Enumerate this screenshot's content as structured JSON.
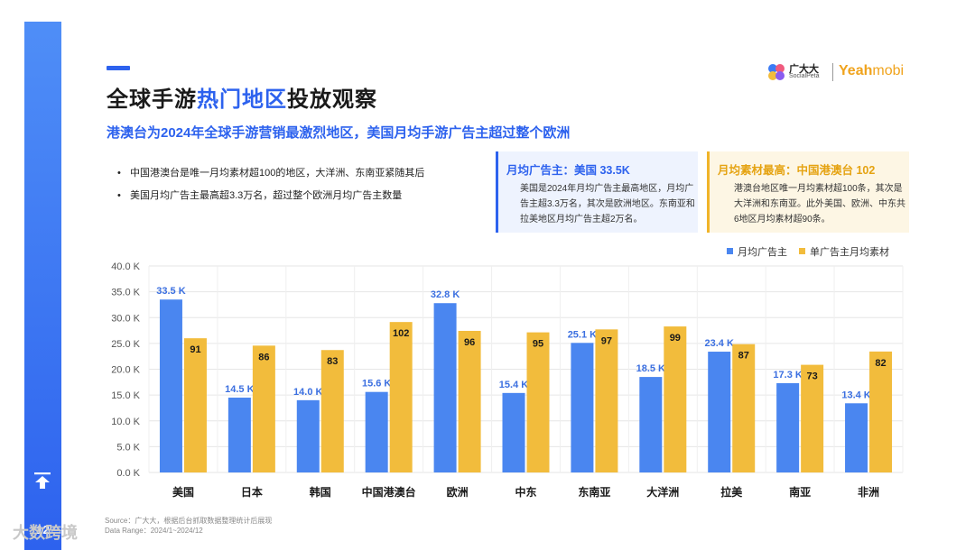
{
  "page": {
    "number": "12"
  },
  "header": {
    "title_prefix": "全球手游",
    "title_highlight": "热门地区",
    "title_suffix": "投放观察",
    "subtitle": "港澳台为2024年全球手游营销最激烈地区，美国月均手游广告主超过整个欧洲"
  },
  "logo": {
    "cn": "广大大",
    "en": "SocialPeta",
    "brand_a": "Yeah",
    "brand_b": "mobi"
  },
  "bullets": [
    "中国港澳台是唯一月均素材超100的地区，大洋洲、东南亚紧随其后",
    "美国月均广告主最高超3.3万名，超过整个欧洲月均广告主数量"
  ],
  "cards": [
    {
      "title": "月均广告主：美国 33.5K",
      "body": "美国是2024年月均广告主最高地区，月均广告主超3.3万名，其次是欧洲地区。东南亚和拉美地区月均广告主超2万名。"
    },
    {
      "title": "月均素材最高：中国港澳台 102",
      "body": "港澳台地区唯一月均素材超100条，其次是大洋洲和东南亚。此外美国、欧洲、中东共6地区月均素材超90条。"
    }
  ],
  "source": {
    "line1": "Source：广大大，根据后台抓取数据整理统计后展现",
    "line2": "Data Range：2024/1~2024/12"
  },
  "watermark": "大数跨境",
  "colors": {
    "blue": "#4a86f0",
    "yellow": "#f2bc3c",
    "accent": "#2d62ee"
  },
  "chart_data": {
    "type": "bar",
    "categories": [
      "美国",
      "日本",
      "韩国",
      "中国港澳台",
      "欧洲",
      "中东",
      "东南亚",
      "大洋洲",
      "拉美",
      "南亚",
      "非洲"
    ],
    "series": [
      {
        "name": "月均广告主",
        "values": [
          33.5,
          14.5,
          14.0,
          15.6,
          32.8,
          15.4,
          25.1,
          18.5,
          23.4,
          17.3,
          13.4
        ],
        "labels": [
          "33.5 K",
          "14.5 K",
          "14.0 K",
          "15.6 K",
          "32.8 K",
          "15.4 K",
          "25.1 K",
          "18.5 K",
          "23.4 K",
          "17.3 K",
          "13.4 K"
        ],
        "color": "#4a86f0"
      },
      {
        "name": "单广告主月均素材",
        "values": [
          91,
          86,
          83,
          102,
          96,
          95,
          97,
          99,
          87,
          73,
          82
        ],
        "labels": [
          "91",
          "86",
          "83",
          "102",
          "96",
          "95",
          "97",
          "99",
          "87",
          "73",
          "82"
        ],
        "color": "#f2bc3c"
      }
    ],
    "y_ticks": [
      "0.0 K",
      "5.0 K",
      "10.0 K",
      "15.0 K",
      "20.0 K",
      "25.0 K",
      "30.0 K",
      "35.0 K",
      "40.0 K"
    ],
    "ylim": [
      0,
      40
    ],
    "legend": "top-right"
  }
}
